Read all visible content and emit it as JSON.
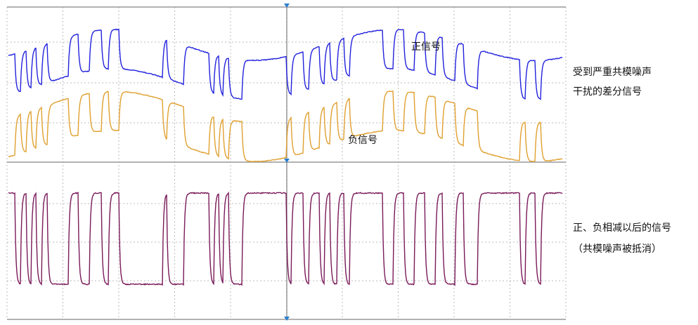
{
  "waveform_labels": {
    "positive": "正信号",
    "negative": "负信号"
  },
  "annotations": {
    "top": [
      "受到严重共模噪声",
      "干扰的差分信号"
    ],
    "bottom": [
      "正、负相减以后的信号",
      "（共模噪声被抵消）"
    ]
  }
}
